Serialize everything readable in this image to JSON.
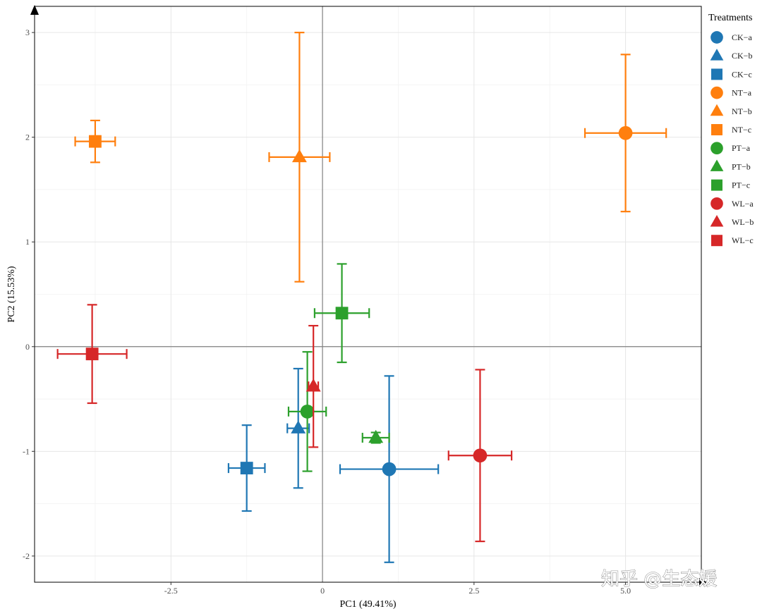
{
  "chart_data": {
    "type": "scatter",
    "title": "",
    "xlabel": "PC1 (49.41%)",
    "ylabel": "PC2 (15.53%)",
    "xlim": [
      -4.75,
      6.25
    ],
    "ylim": [
      -2.25,
      3.25
    ],
    "xticks": [
      -2.5,
      0,
      2.5,
      5.0
    ],
    "xtick_labels": [
      "-2.5",
      "0",
      "2.5",
      "5.0"
    ],
    "yticks": [
      -2,
      -1,
      0,
      1,
      2,
      3
    ],
    "ytick_labels": [
      "-2",
      "-1",
      "0",
      "1",
      "2",
      "3"
    ],
    "grid": true,
    "legend_title": "Treatments",
    "legend_position": "right",
    "colors": {
      "CK": "#1f77b4",
      "NT": "#ff7f0e",
      "PT": "#2ca02c",
      "WL": "#d62728"
    },
    "points": [
      {
        "label": "CK−a",
        "group": "CK",
        "shape": "circle",
        "x": 1.1,
        "y": -1.17,
        "xerr": 0.81,
        "yerr": 0.89
      },
      {
        "label": "CK−b",
        "group": "CK",
        "shape": "triangle",
        "x": -0.4,
        "y": -0.78,
        "xerr": 0.18,
        "yerr": 0.57
      },
      {
        "label": "CK−c",
        "group": "CK",
        "shape": "square",
        "x": -1.25,
        "y": -1.16,
        "xerr": 0.3,
        "yerr": 0.41
      },
      {
        "label": "NT−a",
        "group": "NT",
        "shape": "circle",
        "x": 5.0,
        "y": 2.04,
        "xerr": 0.67,
        "yerr": 0.75
      },
      {
        "label": "NT−b",
        "group": "NT",
        "shape": "triangle",
        "x": -0.38,
        "y": 1.81,
        "xerr": 0.5,
        "yerr": 1.19
      },
      {
        "label": "NT−c",
        "group": "NT",
        "shape": "square",
        "x": -3.75,
        "y": 1.96,
        "xerr": 0.33,
        "yerr": 0.2
      },
      {
        "label": "PT−a",
        "group": "PT",
        "shape": "circle",
        "x": -0.25,
        "y": -0.62,
        "xerr": 0.31,
        "yerr": 0.57
      },
      {
        "label": "PT−b",
        "group": "PT",
        "shape": "triangle",
        "x": 0.88,
        "y": -0.87,
        "xerr": 0.22,
        "yerr": 0.05
      },
      {
        "label": "PT−c",
        "group": "PT",
        "shape": "square",
        "x": 0.32,
        "y": 0.32,
        "xerr": 0.45,
        "yerr": 0.47
      },
      {
        "label": "WL−a",
        "group": "WL",
        "shape": "circle",
        "x": 2.6,
        "y": -1.04,
        "xerr": 0.52,
        "yerr": 0.82
      },
      {
        "label": "WL−b",
        "group": "WL",
        "shape": "triangle",
        "x": -0.15,
        "y": -0.38,
        "xerr": 0.08,
        "yerr": 0.58
      },
      {
        "label": "WL−c",
        "group": "WL",
        "shape": "square",
        "x": -3.8,
        "y": -0.07,
        "xerr": 0.57,
        "yerr": 0.47
      }
    ]
  },
  "watermark": "知乎 @生态媛"
}
